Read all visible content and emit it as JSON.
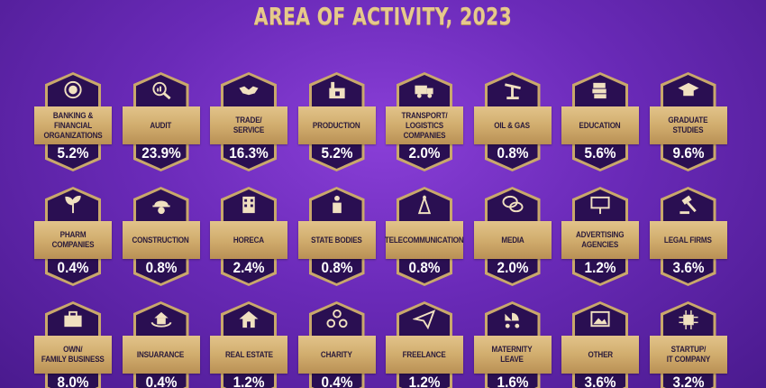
{
  "title": "AREA OF ACTIVITY, 2023",
  "accent_color": "#c9a86b",
  "tiles": [
    {
      "label": "BANKING & FINANCIAL\nORGANIZATIONS",
      "value": "5.2%",
      "icon": "coins-icon"
    },
    {
      "label": "AUDIT",
      "value": "23.9%",
      "icon": "magnifier-chart-icon"
    },
    {
      "label": "TRADE/\nSERVICE",
      "value": "16.3%",
      "icon": "handshake-icon"
    },
    {
      "label": "PRODUCTION",
      "value": "5.2%",
      "icon": "factory-icon"
    },
    {
      "label": "TRANSPORT/\nLOGISTICS COMPANIES",
      "value": "2.0%",
      "icon": "truck-icon"
    },
    {
      "label": "OIL & GAS",
      "value": "0.8%",
      "icon": "oil-pump-icon"
    },
    {
      "label": "EDUCATION",
      "value": "5.6%",
      "icon": "books-icon"
    },
    {
      "label": "GRADUATE\nSTUDIES",
      "value": "9.6%",
      "icon": "graduation-cap-icon"
    },
    {
      "label": "PHARM COMPANIES",
      "value": "0.4%",
      "icon": "sprout-icon"
    },
    {
      "label": "CONSTRUCTION",
      "value": "0.8%",
      "icon": "worker-helmet-icon"
    },
    {
      "label": "HORECA",
      "value": "2.4%",
      "icon": "hotel-building-icon"
    },
    {
      "label": "STATE BODIES",
      "value": "0.8%",
      "icon": "speaker-podium-icon"
    },
    {
      "label": "TELECOMMUNICATION",
      "value": "0.8%",
      "icon": "antenna-tower-icon"
    },
    {
      "label": "MEDIA",
      "value": "2.0%",
      "icon": "speech-bubbles-icon"
    },
    {
      "label": "ADVERTISING\nAGENCIES",
      "value": "1.2%",
      "icon": "billboard-icon"
    },
    {
      "label": "LEGAL FIRMS",
      "value": "3.6%",
      "icon": "gavel-icon"
    },
    {
      "label": "OWN/\nFAMILY BUSINESS",
      "value": "8.0%",
      "icon": "briefcase-icon"
    },
    {
      "label": "INSUARANCE",
      "value": "0.4%",
      "icon": "hands-house-icon"
    },
    {
      "label": "REAL ESTATE",
      "value": "1.2%",
      "icon": "house-icon"
    },
    {
      "label": "CHARITY",
      "value": "0.4%",
      "icon": "people-circle-icon"
    },
    {
      "label": "FREELANCE",
      "value": "1.2%",
      "icon": "paper-plane-icon"
    },
    {
      "label": "MATERNITY\nLEAVE",
      "value": "1.6%",
      "icon": "baby-stroller-icon"
    },
    {
      "label": "OTHER",
      "value": "3.6%",
      "icon": "picture-frame-icon"
    },
    {
      "label": "STARTUP/\nIT COMPANY",
      "value": "3.2%",
      "icon": "chip-icon"
    }
  ]
}
